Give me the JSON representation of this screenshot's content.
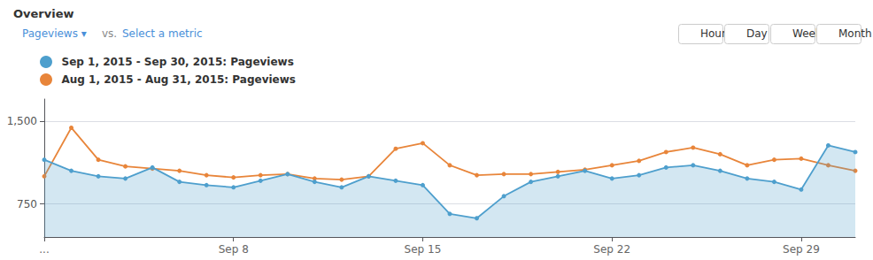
{
  "chart_data": {
    "type": "line",
    "title": "Overview",
    "annotations": [
      "Pageviews ▾",
      "vs.",
      "Select a metric",
      "Hourly",
      "Day",
      "Week",
      "Month"
    ],
    "categories": [
      "...",
      null,
      null,
      null,
      null,
      null,
      null,
      "Sep 8",
      null,
      null,
      null,
      null,
      null,
      null,
      "Sep 15",
      null,
      null,
      null,
      null,
      null,
      null,
      "Sep 22",
      null,
      null,
      null,
      null,
      null,
      null,
      "Sep 29",
      null,
      null
    ],
    "series": [
      {
        "name": "Sep 1, 2015 - Sep 30, 2015: Pageviews",
        "color": "#4e9fcd",
        "marker": "circle",
        "values": [
          1150,
          1050,
          1000,
          980,
          1080,
          950,
          920,
          900,
          960,
          1020,
          950,
          900,
          1000,
          960,
          920,
          660,
          620,
          820,
          950,
          1000,
          1050,
          980,
          1010,
          1080,
          1100,
          1050,
          980,
          950,
          880,
          1280,
          1220
        ]
      },
      {
        "name": "Aug 1, 2015 - Aug 31, 2015: Pageviews",
        "color": "#e8853a",
        "marker": "circle",
        "values": [
          1000,
          1440,
          1150,
          1090,
          1070,
          1050,
          1010,
          990,
          1010,
          1020,
          980,
          970,
          1000,
          1250,
          1300,
          1100,
          1010,
          1020,
          1020,
          1040,
          1060,
          1100,
          1140,
          1220,
          1260,
          1200,
          1100,
          1150,
          1160,
          1100,
          1050
        ]
      }
    ],
    "ylim": [
      450,
      1700
    ],
    "yticks": [
      750,
      {
        "value": 1500,
        "label": "1,500"
      }
    ],
    "grid": true,
    "legend": "top left"
  }
}
